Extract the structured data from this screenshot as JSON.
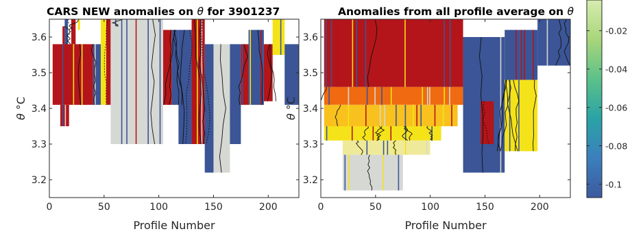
{
  "chart_data": [
    {
      "type": "heatmap",
      "title_prefix": "CARS NEW anomalies on ",
      "title_symbol": "θ",
      "title_suffix": " for 3901237",
      "xlabel": "Profile Number",
      "ylabel_symbol": "θ",
      "ylabel_unit": "°C",
      "xlim": [
        0,
        228
      ],
      "ylim": [
        3.15,
        3.65
      ],
      "xticks": [
        "0",
        "50",
        "100",
        "150",
        "200"
      ],
      "yticks": [
        "3.2",
        "3.3",
        "3.4",
        "3.5",
        "3.6"
      ],
      "contour_lines": true,
      "cells": [
        {
          "x0": 3,
          "x1": 40,
          "y0": 3.41,
          "y1": 3.58,
          "c": "red"
        },
        {
          "x0": 10,
          "x1": 18,
          "y0": 3.35,
          "y1": 3.41,
          "c": "red"
        },
        {
          "x0": 12,
          "x1": 14,
          "y0": 3.58,
          "y1": 3.63,
          "c": "red"
        },
        {
          "x0": 14,
          "x1": 17,
          "y0": 3.58,
          "y1": 3.65,
          "c": "navy"
        },
        {
          "x0": 20,
          "x1": 24,
          "y0": 3.58,
          "y1": 3.65,
          "c": "red"
        },
        {
          "x0": 26,
          "x1": 28,
          "y0": 3.62,
          "y1": 3.65,
          "c": "yellow"
        },
        {
          "x0": 40,
          "x1": 47,
          "y0": 3.41,
          "y1": 3.58,
          "c": "navy"
        },
        {
          "x0": 47,
          "x1": 52,
          "y0": 3.41,
          "y1": 3.65,
          "c": "yellow"
        },
        {
          "x0": 52,
          "x1": 56,
          "y0": 3.41,
          "y1": 3.65,
          "c": "red"
        },
        {
          "x0": 56,
          "x1": 104,
          "y0": 3.3,
          "y1": 3.65,
          "c": "grey"
        },
        {
          "x0": 60,
          "x1": 70,
          "y0": 3.63,
          "y1": 3.65,
          "c": "grey"
        },
        {
          "x0": 104,
          "x1": 112,
          "y0": 3.41,
          "y1": 3.62,
          "c": "red"
        },
        {
          "x0": 112,
          "x1": 118,
          "y0": 3.41,
          "y1": 3.62,
          "c": "navy"
        },
        {
          "x0": 118,
          "x1": 130,
          "y0": 3.3,
          "y1": 3.62,
          "c": "navy"
        },
        {
          "x0": 130,
          "x1": 142,
          "y0": 3.3,
          "y1": 3.65,
          "c": "red"
        },
        {
          "x0": 142,
          "x1": 150,
          "y0": 3.22,
          "y1": 3.58,
          "c": "navy"
        },
        {
          "x0": 150,
          "x1": 165,
          "y0": 3.22,
          "y1": 3.58,
          "c": "grey"
        },
        {
          "x0": 165,
          "x1": 175,
          "y0": 3.3,
          "y1": 3.58,
          "c": "navy"
        },
        {
          "x0": 175,
          "x1": 182,
          "y0": 3.41,
          "y1": 3.58,
          "c": "red"
        },
        {
          "x0": 182,
          "x1": 196,
          "y0": 3.41,
          "y1": 3.62,
          "c": "navy"
        },
        {
          "x0": 196,
          "x1": 204,
          "y0": 3.42,
          "y1": 3.58,
          "c": "red"
        },
        {
          "x0": 204,
          "x1": 215,
          "y0": 3.55,
          "y1": 3.65,
          "c": "yellow"
        },
        {
          "x0": 215,
          "x1": 228,
          "y0": 3.41,
          "y1": 3.58,
          "c": "navy"
        }
      ]
    },
    {
      "type": "heatmap",
      "title_prefix": "Anomalies from all profile average on ",
      "title_symbol": "θ",
      "xlabel": "Profile Number",
      "ylabel_symbol": "θ",
      "ylabel_unit": "°C",
      "xlim": [
        0,
        228
      ],
      "ylim": [
        3.15,
        3.65
      ],
      "xticks": [
        "0",
        "50",
        "100",
        "150",
        "200"
      ],
      "yticks": [
        "3.2",
        "3.3",
        "3.4",
        "3.5",
        "3.6"
      ],
      "contour_lines": true,
      "cells": [
        {
          "x0": 3,
          "x1": 130,
          "y0": 3.46,
          "y1": 3.65,
          "c": "red"
        },
        {
          "x0": 3,
          "x1": 130,
          "y0": 3.41,
          "y1": 3.46,
          "c": "orange"
        },
        {
          "x0": 3,
          "x1": 125,
          "y0": 3.35,
          "y1": 3.41,
          "c": "gold"
        },
        {
          "x0": 3,
          "x1": 110,
          "y0": 3.31,
          "y1": 3.35,
          "c": "yellow"
        },
        {
          "x0": 20,
          "x1": 100,
          "y0": 3.27,
          "y1": 3.31,
          "c": "paleyellow"
        },
        {
          "x0": 20,
          "x1": 75,
          "y0": 3.17,
          "y1": 3.27,
          "c": "grey"
        },
        {
          "x0": 130,
          "x1": 168,
          "y0": 3.22,
          "y1": 3.6,
          "c": "navy"
        },
        {
          "x0": 146,
          "x1": 158,
          "y0": 3.3,
          "y1": 3.42,
          "c": "red"
        },
        {
          "x0": 168,
          "x1": 198,
          "y0": 3.28,
          "y1": 3.48,
          "c": "yellow"
        },
        {
          "x0": 168,
          "x1": 198,
          "y0": 3.48,
          "y1": 3.62,
          "c": "navy"
        },
        {
          "x0": 198,
          "x1": 228,
          "y0": 3.52,
          "y1": 3.65,
          "c": "navy"
        }
      ]
    }
  ],
  "colorbar": {
    "ticks": [
      "-0.02",
      "-0.04",
      "-0.06",
      "-0.08",
      "-0.1"
    ],
    "values": [
      -0.02,
      -0.04,
      -0.06,
      -0.08,
      -0.1
    ],
    "range": [
      -0.107,
      -0.004
    ],
    "colors": [
      "#3c5a9e",
      "#3c7fbd",
      "#29a3a6",
      "#5cc18a",
      "#a8d67a",
      "#d6ecb0"
    ]
  },
  "palette": {
    "red": "#b3151a",
    "navy": "#3b5596",
    "grey": "#d6d8d4",
    "yellow": "#f5e31a",
    "gold": "#f9c11e",
    "orange": "#ef6a10",
    "paleyellow": "#eeea9a"
  }
}
